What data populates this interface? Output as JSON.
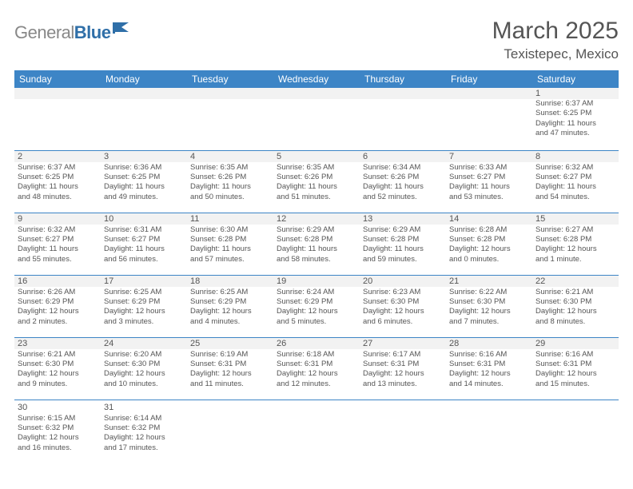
{
  "brand": {
    "text_grey": "General",
    "text_blue": "Blue",
    "flag_color": "#2f6fa8"
  },
  "title": "March 2025",
  "location": "Texistepec, Mexico",
  "header_bg": "#3d85c6",
  "header_fg": "#ffffff",
  "text_color": "#555555",
  "rule_color": "#3d85c6",
  "blank_bg": "#f2f2f2",
  "weekdays": [
    "Sunday",
    "Monday",
    "Tuesday",
    "Wednesday",
    "Thursday",
    "Friday",
    "Saturday"
  ],
  "weeks": [
    [
      null,
      null,
      null,
      null,
      null,
      null,
      {
        "d": "1",
        "sr": "Sunrise: 6:37 AM",
        "ss": "Sunset: 6:25 PM",
        "dl1": "Daylight: 11 hours",
        "dl2": "and 47 minutes."
      }
    ],
    [
      {
        "d": "2",
        "sr": "Sunrise: 6:37 AM",
        "ss": "Sunset: 6:25 PM",
        "dl1": "Daylight: 11 hours",
        "dl2": "and 48 minutes."
      },
      {
        "d": "3",
        "sr": "Sunrise: 6:36 AM",
        "ss": "Sunset: 6:25 PM",
        "dl1": "Daylight: 11 hours",
        "dl2": "and 49 minutes."
      },
      {
        "d": "4",
        "sr": "Sunrise: 6:35 AM",
        "ss": "Sunset: 6:26 PM",
        "dl1": "Daylight: 11 hours",
        "dl2": "and 50 minutes."
      },
      {
        "d": "5",
        "sr": "Sunrise: 6:35 AM",
        "ss": "Sunset: 6:26 PM",
        "dl1": "Daylight: 11 hours",
        "dl2": "and 51 minutes."
      },
      {
        "d": "6",
        "sr": "Sunrise: 6:34 AM",
        "ss": "Sunset: 6:26 PM",
        "dl1": "Daylight: 11 hours",
        "dl2": "and 52 minutes."
      },
      {
        "d": "7",
        "sr": "Sunrise: 6:33 AM",
        "ss": "Sunset: 6:27 PM",
        "dl1": "Daylight: 11 hours",
        "dl2": "and 53 minutes."
      },
      {
        "d": "8",
        "sr": "Sunrise: 6:32 AM",
        "ss": "Sunset: 6:27 PM",
        "dl1": "Daylight: 11 hours",
        "dl2": "and 54 minutes."
      }
    ],
    [
      {
        "d": "9",
        "sr": "Sunrise: 6:32 AM",
        "ss": "Sunset: 6:27 PM",
        "dl1": "Daylight: 11 hours",
        "dl2": "and 55 minutes."
      },
      {
        "d": "10",
        "sr": "Sunrise: 6:31 AM",
        "ss": "Sunset: 6:27 PM",
        "dl1": "Daylight: 11 hours",
        "dl2": "and 56 minutes."
      },
      {
        "d": "11",
        "sr": "Sunrise: 6:30 AM",
        "ss": "Sunset: 6:28 PM",
        "dl1": "Daylight: 11 hours",
        "dl2": "and 57 minutes."
      },
      {
        "d": "12",
        "sr": "Sunrise: 6:29 AM",
        "ss": "Sunset: 6:28 PM",
        "dl1": "Daylight: 11 hours",
        "dl2": "and 58 minutes."
      },
      {
        "d": "13",
        "sr": "Sunrise: 6:29 AM",
        "ss": "Sunset: 6:28 PM",
        "dl1": "Daylight: 11 hours",
        "dl2": "and 59 minutes."
      },
      {
        "d": "14",
        "sr": "Sunrise: 6:28 AM",
        "ss": "Sunset: 6:28 PM",
        "dl1": "Daylight: 12 hours",
        "dl2": "and 0 minutes."
      },
      {
        "d": "15",
        "sr": "Sunrise: 6:27 AM",
        "ss": "Sunset: 6:28 PM",
        "dl1": "Daylight: 12 hours",
        "dl2": "and 1 minute."
      }
    ],
    [
      {
        "d": "16",
        "sr": "Sunrise: 6:26 AM",
        "ss": "Sunset: 6:29 PM",
        "dl1": "Daylight: 12 hours",
        "dl2": "and 2 minutes."
      },
      {
        "d": "17",
        "sr": "Sunrise: 6:25 AM",
        "ss": "Sunset: 6:29 PM",
        "dl1": "Daylight: 12 hours",
        "dl2": "and 3 minutes."
      },
      {
        "d": "18",
        "sr": "Sunrise: 6:25 AM",
        "ss": "Sunset: 6:29 PM",
        "dl1": "Daylight: 12 hours",
        "dl2": "and 4 minutes."
      },
      {
        "d": "19",
        "sr": "Sunrise: 6:24 AM",
        "ss": "Sunset: 6:29 PM",
        "dl1": "Daylight: 12 hours",
        "dl2": "and 5 minutes."
      },
      {
        "d": "20",
        "sr": "Sunrise: 6:23 AM",
        "ss": "Sunset: 6:30 PM",
        "dl1": "Daylight: 12 hours",
        "dl2": "and 6 minutes."
      },
      {
        "d": "21",
        "sr": "Sunrise: 6:22 AM",
        "ss": "Sunset: 6:30 PM",
        "dl1": "Daylight: 12 hours",
        "dl2": "and 7 minutes."
      },
      {
        "d": "22",
        "sr": "Sunrise: 6:21 AM",
        "ss": "Sunset: 6:30 PM",
        "dl1": "Daylight: 12 hours",
        "dl2": "and 8 minutes."
      }
    ],
    [
      {
        "d": "23",
        "sr": "Sunrise: 6:21 AM",
        "ss": "Sunset: 6:30 PM",
        "dl1": "Daylight: 12 hours",
        "dl2": "and 9 minutes."
      },
      {
        "d": "24",
        "sr": "Sunrise: 6:20 AM",
        "ss": "Sunset: 6:30 PM",
        "dl1": "Daylight: 12 hours",
        "dl2": "and 10 minutes."
      },
      {
        "d": "25",
        "sr": "Sunrise: 6:19 AM",
        "ss": "Sunset: 6:31 PM",
        "dl1": "Daylight: 12 hours",
        "dl2": "and 11 minutes."
      },
      {
        "d": "26",
        "sr": "Sunrise: 6:18 AM",
        "ss": "Sunset: 6:31 PM",
        "dl1": "Daylight: 12 hours",
        "dl2": "and 12 minutes."
      },
      {
        "d": "27",
        "sr": "Sunrise: 6:17 AM",
        "ss": "Sunset: 6:31 PM",
        "dl1": "Daylight: 12 hours",
        "dl2": "and 13 minutes."
      },
      {
        "d": "28",
        "sr": "Sunrise: 6:16 AM",
        "ss": "Sunset: 6:31 PM",
        "dl1": "Daylight: 12 hours",
        "dl2": "and 14 minutes."
      },
      {
        "d": "29",
        "sr": "Sunrise: 6:16 AM",
        "ss": "Sunset: 6:31 PM",
        "dl1": "Daylight: 12 hours",
        "dl2": "and 15 minutes."
      }
    ],
    [
      {
        "d": "30",
        "sr": "Sunrise: 6:15 AM",
        "ss": "Sunset: 6:32 PM",
        "dl1": "Daylight: 12 hours",
        "dl2": "and 16 minutes."
      },
      {
        "d": "31",
        "sr": "Sunrise: 6:14 AM",
        "ss": "Sunset: 6:32 PM",
        "dl1": "Daylight: 12 hours",
        "dl2": "and 17 minutes."
      },
      null,
      null,
      null,
      null,
      null
    ]
  ]
}
